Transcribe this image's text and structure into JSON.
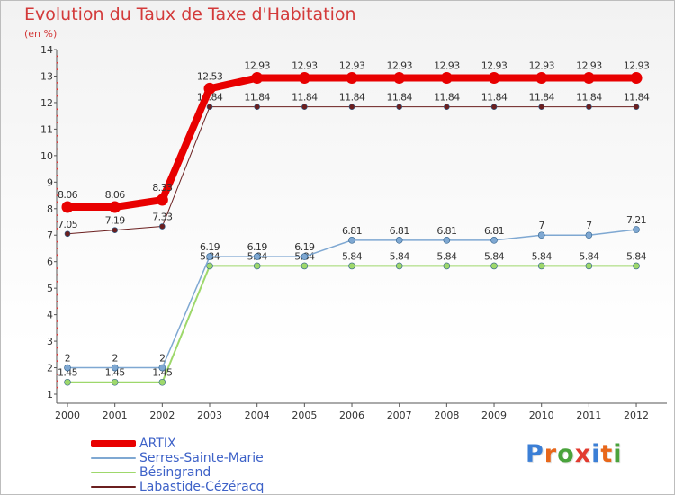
{
  "chart_data": {
    "type": "line",
    "title": "Evolution du Taux de Taxe d'Habitation",
    "subtitle": "(en %)",
    "xlabel": "",
    "ylabel": "",
    "ylim": [
      1,
      14
    ],
    "y_ticks": [
      "1",
      "2",
      "3",
      "4",
      "5",
      "6",
      "7",
      "8",
      "9",
      "10",
      "11",
      "12",
      "13",
      "14"
    ],
    "categories": [
      "2000",
      "2001",
      "2002",
      "2003",
      "2004",
      "2005",
      "2006",
      "2007",
      "2008",
      "2009",
      "2010",
      "2011",
      "2012"
    ],
    "series": [
      {
        "name": "Labastide-Cézéracq",
        "color": "#6b1f1f",
        "values": [
          7.05,
          7.19,
          7.33,
          11.84,
          11.84,
          11.84,
          11.84,
          11.84,
          11.84,
          11.84,
          11.84,
          11.84,
          11.84
        ],
        "labels": [
          "7.05",
          "7.19",
          "7.33",
          "11.84",
          "11.84",
          "11.84",
          "11.84",
          "11.84",
          "11.84",
          "11.84",
          "11.84",
          "11.84",
          "11.84"
        ]
      },
      {
        "name": "Bésingrand",
        "color": "#9ed86b",
        "values": [
          1.45,
          1.45,
          1.45,
          5.84,
          5.84,
          5.84,
          5.84,
          5.84,
          5.84,
          5.84,
          5.84,
          5.84,
          5.84
        ],
        "labels": [
          "1.45",
          "1.45",
          "1.45",
          "5.84",
          "5.84",
          "5.84",
          "5.84",
          "5.84",
          "5.84",
          "5.84",
          "5.84",
          "5.84",
          "5.84"
        ]
      },
      {
        "name": "Serres-Sainte-Marie",
        "color": "#7fa8d2",
        "values": [
          2,
          2,
          2,
          6.19,
          6.19,
          6.19,
          6.81,
          6.81,
          6.81,
          6.81,
          7,
          7,
          7.21
        ],
        "labels": [
          "2",
          "2",
          "2",
          "6.19",
          "6.19",
          "6.19",
          "6.81",
          "6.81",
          "6.81",
          "6.81",
          "7",
          "7",
          "7.21"
        ]
      },
      {
        "name": "ARTIX",
        "color": "#e80000",
        "values": [
          8.06,
          8.06,
          8.33,
          12.53,
          12.93,
          12.93,
          12.93,
          12.93,
          12.93,
          12.93,
          12.93,
          12.93,
          12.93
        ],
        "labels": [
          "8.06",
          "8.06",
          "8.33",
          "12.53",
          "12.93",
          "12.93",
          "12.93",
          "12.93",
          "12.93",
          "12.93",
          "12.93",
          "12.93",
          "12.93"
        ]
      }
    ],
    "legend": [
      {
        "name": "ARTIX",
        "color": "#e80000"
      },
      {
        "name": "Serres-Sainte-Marie",
        "color": "#7fa8d2"
      },
      {
        "name": "Bésingrand",
        "color": "#9ed86b"
      },
      {
        "name": "Labastide-Cézéracq",
        "color": "#6b1f1f"
      }
    ],
    "legend_position": "bottom-left"
  },
  "logo": {
    "text": "Proxiti",
    "letter_colors": [
      "#3b7fd6",
      "#e8671a",
      "#4aa33c",
      "#e23a2f",
      "#3b7fd6",
      "#e8671a",
      "#4aa33c"
    ]
  }
}
